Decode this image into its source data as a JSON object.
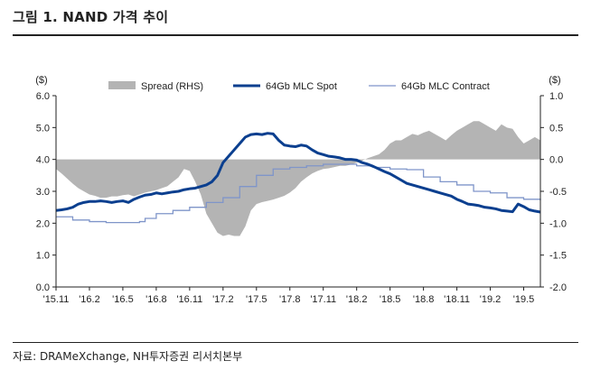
{
  "header": {
    "title": "그림 1. NAND 가격 추이"
  },
  "footer": {
    "source": "자료: DRAMeXchange, NH투자증권 리서치본부"
  },
  "colors": {
    "spot": "#0b3f8f",
    "contract": "#7f95c9",
    "spread": "#b4b4b4"
  },
  "chart_data": {
    "type": "line",
    "title": "",
    "left_axis": {
      "unit_label": "($)",
      "ylim": [
        0,
        6
      ],
      "ticks": [
        "0.0",
        "1.0",
        "2.0",
        "3.0",
        "4.0",
        "5.0",
        "6.0"
      ]
    },
    "right_axis": {
      "unit_label": "($)",
      "ylim": [
        -2,
        1
      ],
      "ticks": [
        "-2.0",
        "-1.5",
        "-1.0",
        "-0.5",
        "0.0",
        "0.5",
        "1.0"
      ]
    },
    "x_ticks": [
      "'15.11",
      "'16.2",
      "'16.5",
      "'16.8",
      "'16.11",
      "'17.2",
      "'17.5",
      "'17.8",
      "'17.11",
      "'18.2",
      "'18.5",
      "'18.8",
      "'18.11",
      "'19.2",
      "'19.5"
    ],
    "x_domain": [
      0,
      43.5
    ],
    "series": [
      {
        "name": "Spread (RHS)",
        "type": "area",
        "axis": "right",
        "x": [
          0,
          0.5,
          1,
          1.5,
          2,
          2.5,
          3,
          3.5,
          4,
          4.5,
          5,
          5.5,
          6,
          6.5,
          7,
          7.5,
          8,
          8.5,
          9,
          9.5,
          10,
          10.5,
          11,
          11.5,
          12,
          12.5,
          13,
          13.5,
          14,
          14.5,
          15,
          15.5,
          16,
          16.5,
          17,
          17.5,
          18,
          18.5,
          19,
          19.5,
          20,
          20.5,
          21,
          21.5,
          22,
          22.5,
          23,
          23.5,
          24,
          24.5,
          25,
          25.5,
          26,
          26.5,
          27,
          27.5,
          28,
          28.5,
          29,
          29.5,
          30,
          30.5,
          31,
          31.5,
          32,
          32.5,
          33,
          33.5,
          34,
          34.5,
          35,
          35.5,
          36,
          36.5,
          37,
          37.5,
          38,
          38.5,
          39,
          39.5,
          40,
          40.5,
          41,
          41.5,
          42,
          42.5,
          43,
          43.5
        ],
        "values": [
          -0.15,
          -0.22,
          -0.3,
          -0.38,
          -0.45,
          -0.5,
          -0.55,
          -0.57,
          -0.6,
          -0.6,
          -0.58,
          -0.58,
          -0.56,
          -0.55,
          -0.58,
          -0.55,
          -0.52,
          -0.5,
          -0.48,
          -0.45,
          -0.42,
          -0.35,
          -0.28,
          -0.15,
          -0.18,
          -0.35,
          -0.55,
          -0.85,
          -1.0,
          -1.15,
          -1.2,
          -1.18,
          -1.2,
          -1.2,
          -1.05,
          -0.8,
          -0.7,
          -0.67,
          -0.65,
          -0.63,
          -0.6,
          -0.57,
          -0.52,
          -0.45,
          -0.35,
          -0.28,
          -0.22,
          -0.18,
          -0.15,
          -0.14,
          -0.12,
          -0.1,
          -0.1,
          -0.08,
          -0.05,
          -0.02,
          0.02,
          0.05,
          0.08,
          0.15,
          0.25,
          0.3,
          0.3,
          0.35,
          0.4,
          0.38,
          0.42,
          0.45,
          0.4,
          0.35,
          0.3,
          0.38,
          0.45,
          0.5,
          0.55,
          0.6,
          0.6,
          0.55,
          0.5,
          0.45,
          0.55,
          0.5,
          0.48,
          0.35,
          0.25,
          0.3,
          0.35,
          0.3
        ]
      },
      {
        "name": "64Gb MLC Spot",
        "type": "line",
        "axis": "left",
        "x": [
          0,
          0.5,
          1,
          1.5,
          2,
          2.5,
          3,
          3.5,
          4,
          4.5,
          5,
          5.5,
          6,
          6.5,
          7,
          7.5,
          8,
          8.5,
          9,
          9.5,
          10,
          10.5,
          11,
          11.5,
          12,
          12.5,
          13,
          13.5,
          14,
          14.5,
          15,
          15.5,
          16,
          16.5,
          17,
          17.5,
          18,
          18.5,
          19,
          19.5,
          20,
          20.5,
          21,
          21.5,
          22,
          22.5,
          23,
          23.5,
          24,
          24.5,
          25,
          25.5,
          26,
          26.5,
          27,
          27.5,
          28,
          28.5,
          29,
          29.5,
          30,
          30.5,
          31,
          31.5,
          32,
          32.5,
          33,
          33.5,
          34,
          34.5,
          35,
          35.5,
          36,
          36.5,
          37,
          37.5,
          38,
          38.5,
          39,
          39.5,
          40,
          40.5,
          41,
          41.5,
          42,
          42.5,
          43,
          43.5
        ],
        "values": [
          2.4,
          2.42,
          2.45,
          2.5,
          2.6,
          2.65,
          2.68,
          2.68,
          2.7,
          2.68,
          2.65,
          2.68,
          2.7,
          2.65,
          2.75,
          2.82,
          2.88,
          2.9,
          2.95,
          2.92,
          2.95,
          2.98,
          3.0,
          3.05,
          3.08,
          3.1,
          3.15,
          3.2,
          3.3,
          3.5,
          3.9,
          4.1,
          4.3,
          4.5,
          4.7,
          4.78,
          4.8,
          4.78,
          4.82,
          4.8,
          4.6,
          4.45,
          4.42,
          4.4,
          4.45,
          4.42,
          4.3,
          4.2,
          4.15,
          4.1,
          4.08,
          4.05,
          4.0,
          4.0,
          3.98,
          3.9,
          3.85,
          3.78,
          3.7,
          3.62,
          3.55,
          3.45,
          3.35,
          3.25,
          3.2,
          3.15,
          3.1,
          3.05,
          3.0,
          2.95,
          2.9,
          2.85,
          2.75,
          2.68,
          2.6,
          2.58,
          2.55,
          2.5,
          2.48,
          2.45,
          2.4,
          2.38,
          2.36,
          2.6,
          2.52,
          2.42,
          2.38,
          2.35
        ]
      },
      {
        "name": "64Gb MLC Contract",
        "type": "step",
        "axis": "left",
        "x": [
          0,
          1.5,
          3,
          4.5,
          6,
          7.5,
          8,
          9,
          10.5,
          12,
          13.5,
          15,
          16.5,
          18,
          19.5,
          21,
          22.5,
          24,
          25.5,
          27,
          28.5,
          30,
          31.5,
          33,
          34.5,
          36,
          37.5,
          39,
          40.5,
          42,
          43.5
        ],
        "values": [
          2.2,
          2.1,
          2.05,
          2.02,
          2.02,
          2.05,
          2.15,
          2.3,
          2.4,
          2.5,
          2.65,
          2.8,
          3.15,
          3.5,
          3.7,
          3.75,
          3.8,
          3.85,
          3.85,
          3.8,
          3.75,
          3.7,
          3.68,
          3.45,
          3.3,
          3.2,
          3.0,
          2.95,
          2.8,
          2.75,
          2.72
        ]
      }
    ],
    "legend": {
      "position": "top",
      "entries": [
        "Spread (RHS)",
        "64Gb MLC Spot",
        "64Gb MLC Contract"
      ]
    },
    "grid": false
  }
}
